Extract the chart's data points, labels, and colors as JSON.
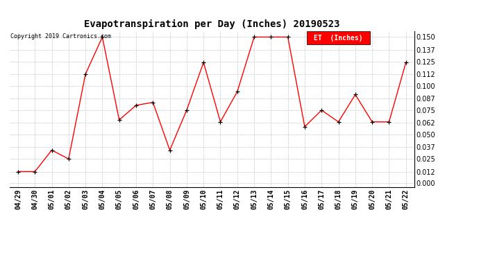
{
  "title": "Evapotranspiration per Day (Inches) 20190523",
  "copyright_text": "Copyright 2019 Cartronics.com",
  "legend_label": "ET  (Inches)",
  "legend_bg": "#ff0000",
  "legend_text_color": "#ffffff",
  "x_labels": [
    "04/29",
    "04/30",
    "05/01",
    "05/02",
    "05/03",
    "05/04",
    "05/05",
    "05/06",
    "05/07",
    "05/08",
    "05/09",
    "05/10",
    "05/11",
    "05/12",
    "05/13",
    "05/14",
    "05/15",
    "05/16",
    "05/17",
    "05/18",
    "05/19",
    "05/20",
    "05/21",
    "05/22"
  ],
  "y_values": [
    0.012,
    0.012,
    0.034,
    0.025,
    0.112,
    0.15,
    0.065,
    0.08,
    0.083,
    0.034,
    0.075,
    0.124,
    0.063,
    0.094,
    0.15,
    0.15,
    0.15,
    0.058,
    0.075,
    0.063,
    0.091,
    0.063,
    0.063,
    0.124
  ],
  "y_ticks": [
    0.0,
    0.012,
    0.025,
    0.037,
    0.05,
    0.062,
    0.075,
    0.087,
    0.1,
    0.112,
    0.125,
    0.137,
    0.15
  ],
  "line_color": "#ff0000",
  "marker_color": "#000000",
  "bg_color": "#ffffff",
  "grid_color": "#c8c8c8",
  "title_fontsize": 10,
  "copyright_fontsize": 6,
  "tick_fontsize": 7,
  "legend_fontsize": 7
}
